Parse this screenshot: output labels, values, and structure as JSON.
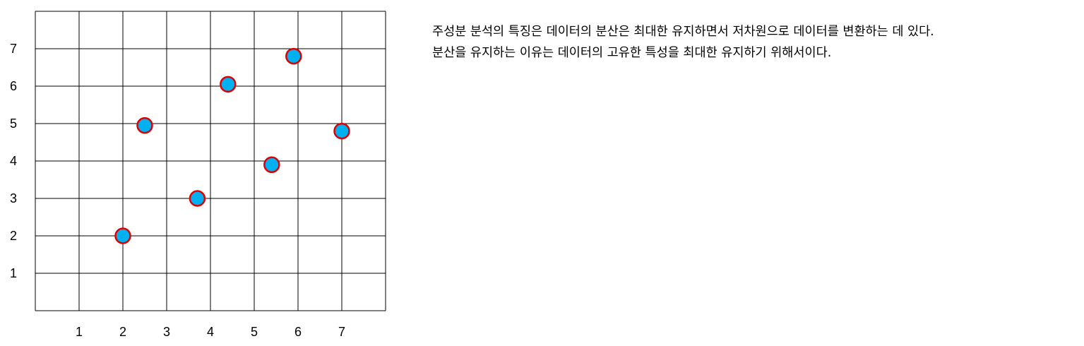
{
  "chart_data": {
    "type": "scatter",
    "title": "",
    "xlabel": "",
    "ylabel": "",
    "xlim": [
      0,
      8
    ],
    "ylim": [
      0,
      8
    ],
    "x_ticks": [
      1,
      2,
      3,
      4,
      5,
      6,
      7
    ],
    "y_ticks": [
      1,
      2,
      3,
      4,
      5,
      6,
      7
    ],
    "grid": true,
    "x": [
      2.0,
      2.5,
      3.7,
      4.4,
      5.4,
      5.9,
      7.0
    ],
    "y": [
      2.0,
      4.95,
      3.0,
      6.05,
      3.9,
      6.8,
      4.8
    ],
    "marker_fill": "#00b0f0",
    "marker_edge": "#e00000",
    "grid_color": "#000000"
  },
  "description": {
    "line1": "주성분 분석의 특징은 데이터의 분산은 최대한 유지하면서 저차원으로 데이터를 변환하는 데 있다.",
    "line2": "분산을 유지하는 이유는 데이터의 고유한 특성을 최대한 유지하기 위해서이다."
  }
}
